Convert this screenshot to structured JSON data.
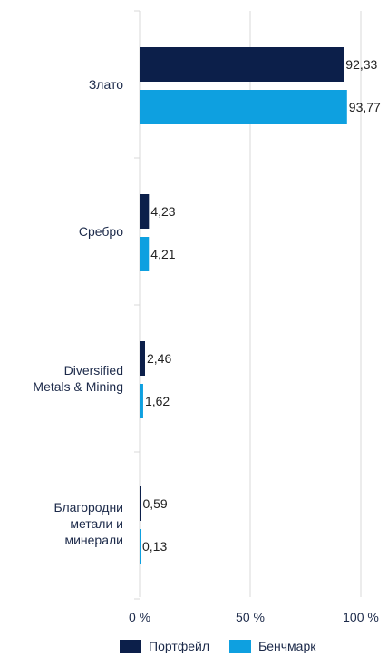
{
  "chart_data": {
    "type": "bar",
    "orientation": "horizontal",
    "categories": [
      "Злато",
      "Сребро",
      "Diversified\nMetals & Mining",
      "Благородни\nметали и\nминерали"
    ],
    "series": [
      {
        "name": "Портфейл",
        "color": "#0c1f4a",
        "values": [
          92.33,
          4.23,
          2.46,
          0.59
        ],
        "labels": [
          "92,33",
          "4,23",
          "2,46",
          "0,59"
        ]
      },
      {
        "name": "Бенчмарк",
        "color": "#0ea0e0",
        "values": [
          93.77,
          4.21,
          1.62,
          0.13
        ],
        "labels": [
          "93,77",
          "4,21",
          "1,62",
          "0,13"
        ]
      }
    ],
    "x_ticks": [
      {
        "value": 0,
        "label": "0 %"
      },
      {
        "value": 50,
        "label": "50 %"
      },
      {
        "value": 100,
        "label": "100 %"
      }
    ],
    "xlim": [
      0,
      100
    ],
    "grid": true,
    "legend_position": "bottom"
  }
}
